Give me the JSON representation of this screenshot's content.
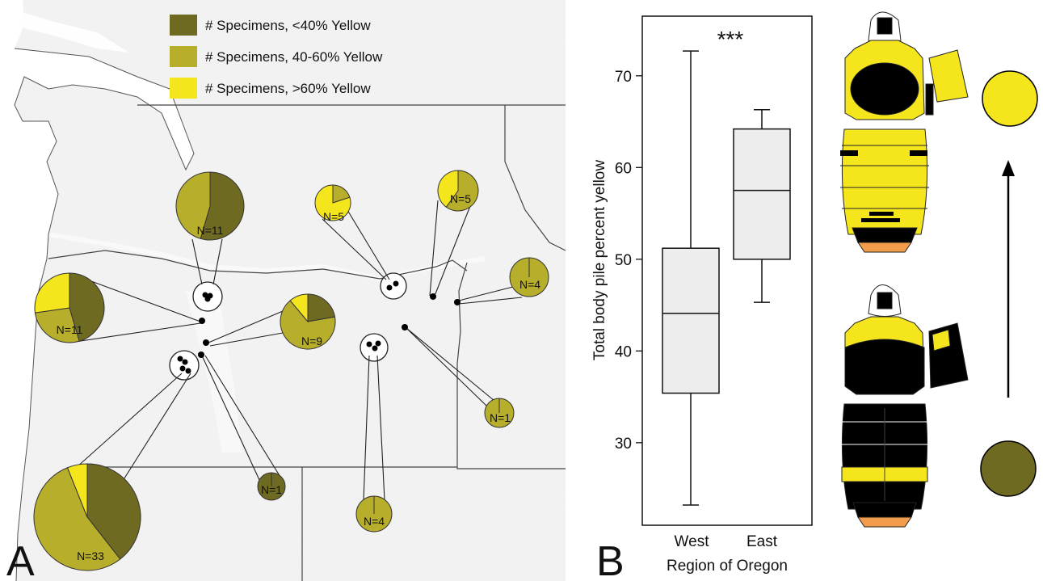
{
  "panels": {
    "a_letter": "A",
    "b_letter": "B"
  },
  "legend": {
    "items": [
      {
        "label": "# Specimens, <40% Yellow",
        "color": "#6f6a22"
      },
      {
        "label": "# Specimens, 40-60% Yellow",
        "color": "#b7ae2c"
      },
      {
        "label": "# Specimens, >60% Yellow",
        "color": "#f5e51d"
      }
    ]
  },
  "colors": {
    "dark": "#6f6a22",
    "mid": "#b7ae2c",
    "bright": "#f5e51d",
    "orange": "#f39c4b",
    "box_fill": "#ededed"
  },
  "chart_data": [
    {
      "type": "pie",
      "description": "Map of Oregon/Washington region with pie charts of specimen color classes per locality",
      "categories": [
        "<40% Yellow",
        "40-60% Yellow",
        ">60% Yellow"
      ],
      "pies": [
        {
          "label": "N=11",
          "n": 11,
          "values": [
            6,
            5,
            0
          ]
        },
        {
          "label": "N=11",
          "n": 11,
          "values": [
            5,
            3,
            3
          ]
        },
        {
          "label": "N=9",
          "n": 9,
          "values": [
            2,
            6,
            1
          ]
        },
        {
          "label": "N=33",
          "n": 33,
          "values": [
            13,
            18,
            2
          ]
        },
        {
          "label": "N=1",
          "n": 1,
          "values": [
            1,
            0,
            0
          ]
        },
        {
          "label": "N=4",
          "n": 4,
          "values": [
            0,
            4,
            0
          ]
        },
        {
          "label": "N=5",
          "n": 5,
          "values": [
            0,
            1,
            4
          ]
        },
        {
          "label": "N=5",
          "n": 5,
          "values": [
            0,
            3,
            2
          ]
        },
        {
          "label": "N=4",
          "n": 4,
          "values": [
            0,
            4,
            0
          ]
        },
        {
          "label": "N=1",
          "n": 1,
          "values": [
            0,
            1,
            0
          ]
        }
      ]
    },
    {
      "type": "box",
      "categories": [
        "West",
        "East"
      ],
      "boxes": [
        {
          "name": "West",
          "min": 23.2,
          "q1": 35.4,
          "median": 44.1,
          "q3": 51.2,
          "max": 72.7
        },
        {
          "name": "East",
          "min": 45.3,
          "q1": 50.0,
          "median": 57.5,
          "q3": 64.2,
          "max": 66.3
        }
      ],
      "xlabel": "Region of Oregon",
      "ylabel": "Total body pile percent yellow",
      "ylim": [
        21,
        76.5
      ],
      "yticks": [
        "30",
        "40",
        "50",
        "60",
        "70"
      ],
      "annotation": "***"
    }
  ]
}
